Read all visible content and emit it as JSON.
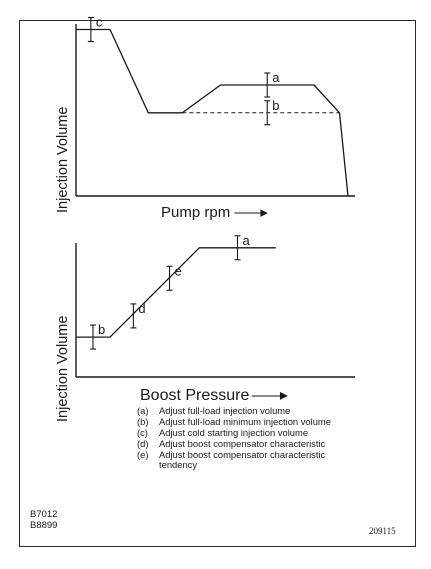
{
  "chart_data": [
    {
      "type": "line",
      "xlabel": "Pump rpm",
      "ylabel": "Injection Volume",
      "series": [
        {
          "points": [
            [
              0,
              90
            ],
            [
              8,
              90
            ],
            [
              17,
              45
            ],
            [
              25,
              45
            ],
            [
              34,
              60
            ],
            [
              56,
              60
            ],
            [
              62,
              45
            ],
            [
              64,
              0
            ]
          ]
        },
        {
          "style": "dashed",
          "points": [
            [
              25,
              45
            ],
            [
              62,
              45
            ]
          ]
        }
      ],
      "annotations": [
        {
          "label": "c",
          "x": 3.5,
          "y": 90
        },
        {
          "label": "a",
          "x": 45,
          "y": 60
        },
        {
          "label": "b",
          "x": 45,
          "y": 45
        }
      ]
    },
    {
      "type": "line",
      "xlabel": "Boost Pressure",
      "ylabel": "Injection Volume",
      "series": [
        {
          "points": [
            [
              0,
              17
            ],
            [
              8,
              17
            ],
            [
              29,
              55
            ],
            [
              47,
              55
            ]
          ]
        }
      ],
      "annotations": [
        {
          "label": "b",
          "x": 4,
          "y": 17
        },
        {
          "label": "d",
          "x": 13.5,
          "y": 26
        },
        {
          "label": "e",
          "x": 22,
          "y": 42
        },
        {
          "label": "a",
          "x": 38,
          "y": 55
        }
      ]
    }
  ],
  "legend": [
    {
      "key": "(a)",
      "text": "Adjust full-load injection volume"
    },
    {
      "key": "(b)",
      "text": "Adjust full-load minimum injection volume"
    },
    {
      "key": "(c)",
      "text": "Adjust cold starting injection volume"
    },
    {
      "key": "(d)",
      "text": "Adjust boost compensator characteristic"
    },
    {
      "key": "(e)",
      "text": "Adjust boost compensator characteristic tendency"
    }
  ],
  "codes": {
    "left_top": "B7012",
    "left_bottom": "B8899",
    "right": "209115"
  }
}
